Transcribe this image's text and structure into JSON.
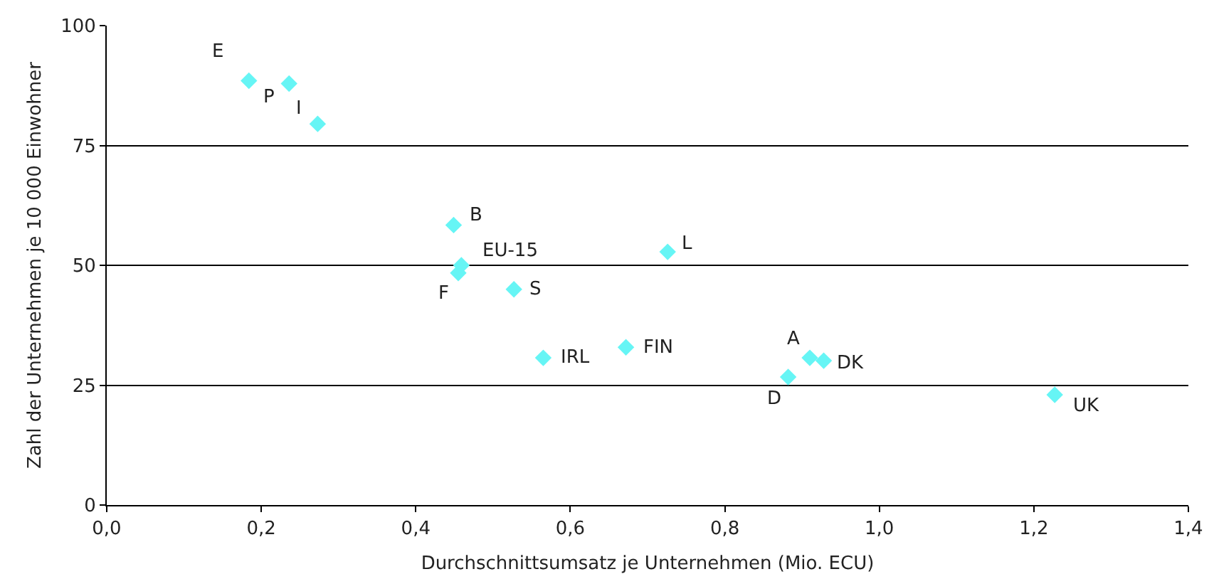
{
  "chart_data": {
    "type": "scatter",
    "xlabel": "Durchschnittsumsatz je Unternehmen (Mio. ECU)",
    "ylabel": "Zahl der Unternehmen je 10 000 Einwohner",
    "x": [
      0.184,
      0.236,
      0.273,
      0.449,
      0.459,
      0.455,
      0.527,
      0.726,
      0.565,
      0.672,
      0.91,
      0.928,
      0.882,
      1.227
    ],
    "series": [
      {
        "color": "#66f5f5",
        "values": [
          88.5,
          87.9,
          79.5,
          58.4,
          50.0,
          48.4,
          45.0,
          52.8,
          30.7,
          32.9,
          30.7,
          30.1,
          26.7,
          23.0
        ]
      }
    ],
    "marker": "diamond",
    "grid": "y",
    "xlim": [
      0,
      1.4
    ],
    "xticks": [
      {
        "value": 0,
        "label": "0,0"
      },
      {
        "value": 0.2,
        "label": "0,2"
      },
      {
        "value": 0.4,
        "label": "0,4"
      },
      {
        "value": 0.6,
        "label": "0,6"
      },
      {
        "value": 0.8,
        "label": "0,8"
      },
      {
        "value": 1.0,
        "label": "1,0"
      },
      {
        "value": 1.2,
        "label": "1,2"
      },
      {
        "value": 1.4,
        "label": "1,4"
      }
    ],
    "ylim": [
      0,
      100
    ],
    "yticks": [
      0,
      25,
      50,
      75,
      100
    ],
    "annotations": [
      {
        "text": "E",
        "x": 0.184,
        "y": 88.5
      },
      {
        "text": "P",
        "x": 0.236,
        "y": 87.9
      },
      {
        "text": "I",
        "x": 0.273,
        "y": 79.5
      },
      {
        "text": "B",
        "x": 0.449,
        "y": 58.4
      },
      {
        "text": "EU-15",
        "x": 0.459,
        "y": 50.0
      },
      {
        "text": "F",
        "x": 0.455,
        "y": 48.4
      },
      {
        "text": "S",
        "x": 0.527,
        "y": 45.0
      },
      {
        "text": "L",
        "x": 0.726,
        "y": 52.8
      },
      {
        "text": "IRL",
        "x": 0.565,
        "y": 30.7
      },
      {
        "text": "FIN",
        "x": 0.672,
        "y": 32.9
      },
      {
        "text": "A",
        "x": 0.91,
        "y": 30.7
      },
      {
        "text": "DK",
        "x": 0.928,
        "y": 30.1
      },
      {
        "text": "D",
        "x": 0.882,
        "y": 26.7
      },
      {
        "text": "UK",
        "x": 1.227,
        "y": 23.0
      }
    ]
  }
}
